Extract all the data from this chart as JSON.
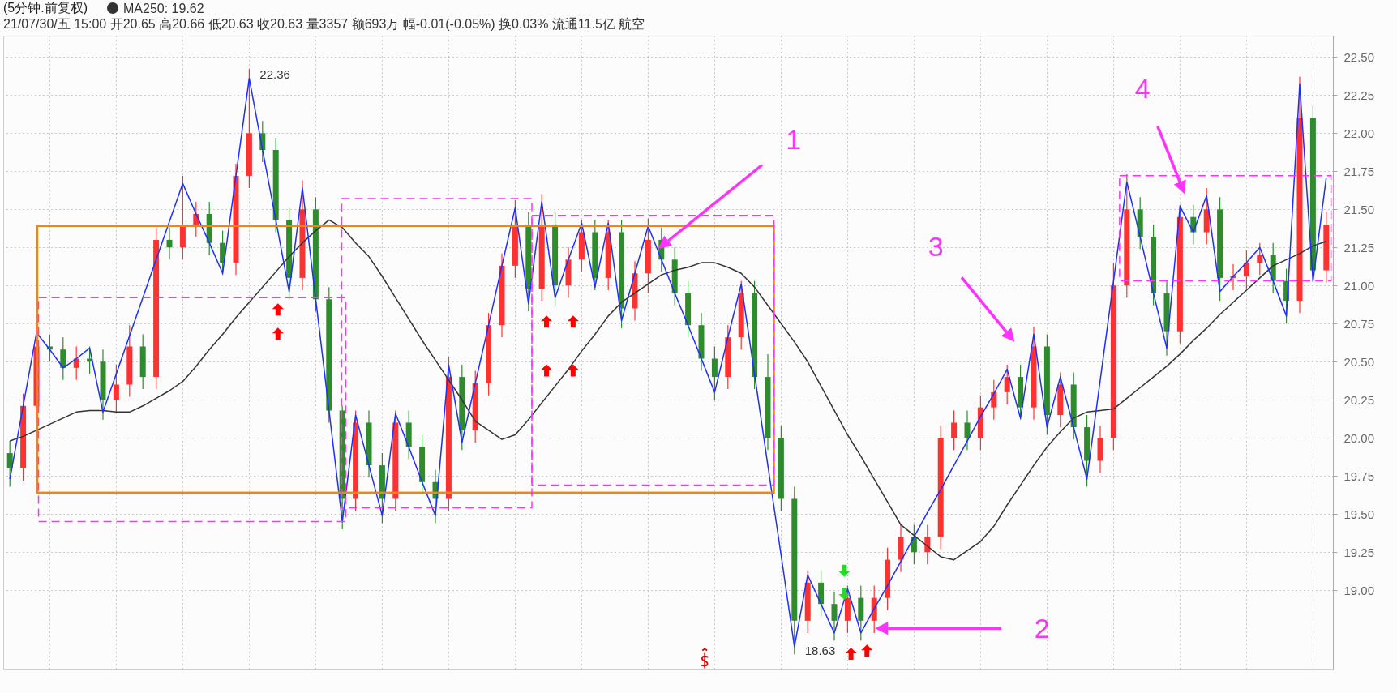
{
  "chart_data": {
    "type": "candlestick",
    "title": "(5分钟.前复权)",
    "subtitle": "21/07/30/五 15:00 开20.65 高20.66 低20.63 收20.63 量3357 额693万 幅-0.01(-0.05%) 换0.03% 流通11.5亿 航空",
    "ylim": [
      18.48,
      22.64
    ],
    "yticks": [
      {
        "value": 19,
        "label": "19.00"
      },
      {
        "value": 19.25,
        "label": "19.25"
      },
      {
        "value": 19.5,
        "label": "19.50"
      },
      {
        "value": 19.75,
        "label": "19.75"
      },
      {
        "value": 20,
        "label": "20.00"
      },
      {
        "value": 20.25,
        "label": "20.25"
      },
      {
        "value": 20.5,
        "label": "20.50"
      },
      {
        "value": 20.75,
        "label": "20.75"
      },
      {
        "value": 21,
        "label": "21.00"
      },
      {
        "value": 21.25,
        "label": "21.25"
      },
      {
        "value": 21.5,
        "label": "21.50"
      },
      {
        "value": 21.75,
        "label": "21.75"
      },
      {
        "value": 22,
        "label": "22.00"
      },
      {
        "value": 22.25,
        "label": "22.25"
      },
      {
        "value": 22.5,
        "label": "22.50"
      }
    ],
    "grid": true,
    "tick_labels": "y",
    "legend": "top left",
    "categories": [
      null,
      null,
      null,
      null,
      null,
      null,
      null,
      null,
      null,
      null,
      null,
      null,
      null,
      null,
      null,
      null,
      null,
      null,
      null,
      null,
      null,
      null,
      null,
      null,
      null,
      null,
      null,
      null,
      null,
      null,
      null,
      null,
      null,
      null,
      null,
      null,
      null,
      null,
      null,
      null,
      null,
      null,
      null,
      null,
      null,
      null,
      null,
      null,
      null,
      null,
      null,
      null,
      null,
      null,
      null,
      null,
      null,
      null,
      null,
      null,
      null,
      null,
      null,
      null,
      null,
      null,
      null,
      null,
      null,
      null,
      null,
      null,
      null,
      null,
      null,
      null,
      null,
      null,
      null,
      null,
      null,
      null,
      null,
      null,
      null,
      null,
      null,
      null,
      null,
      null,
      null,
      null,
      null,
      null,
      null,
      null,
      null,
      null,
      null,
      null
    ],
    "ohlc": [
      [
        19.9,
        19.98,
        19.68,
        19.8
      ],
      [
        19.8,
        20.29,
        19.72,
        20.21
      ],
      [
        20.21,
        20.74,
        20.13,
        20.6
      ],
      [
        20.6,
        20.68,
        20.5,
        20.58
      ],
      [
        20.58,
        20.66,
        20.38,
        20.46
      ],
      [
        20.46,
        20.6,
        20.38,
        20.52
      ],
      [
        20.52,
        20.6,
        20.42,
        20.5
      ],
      [
        20.5,
        20.58,
        20.12,
        20.25
      ],
      [
        20.25,
        20.48,
        20.17,
        20.35
      ],
      [
        20.35,
        20.74,
        20.27,
        20.6
      ],
      [
        20.6,
        20.68,
        20.32,
        20.4
      ],
      [
        20.4,
        21.38,
        20.32,
        21.3
      ],
      [
        21.3,
        21.38,
        21.17,
        21.25
      ],
      [
        21.25,
        21.72,
        21.17,
        21.4
      ],
      [
        21.4,
        21.55,
        21.32,
        21.47
      ],
      [
        21.47,
        21.55,
        21.2,
        21.28
      ],
      [
        21.28,
        21.36,
        21.07,
        21.15
      ],
      [
        21.15,
        21.8,
        21.07,
        21.72
      ],
      [
        21.72,
        22.42,
        21.64,
        22.0
      ],
      [
        22.0,
        22.08,
        21.81,
        21.89
      ],
      [
        21.89,
        21.97,
        21.35,
        21.43
      ],
      [
        21.43,
        21.51,
        20.91,
        21.05
      ],
      [
        21.05,
        21.69,
        20.97,
        21.5
      ],
      [
        21.5,
        21.58,
        20.83,
        20.91
      ],
      [
        20.91,
        20.99,
        20.1,
        20.18
      ],
      [
        20.18,
        20.21,
        19.4,
        19.6
      ],
      [
        19.6,
        20.18,
        19.52,
        20.1
      ],
      [
        20.1,
        20.18,
        19.74,
        19.82
      ],
      [
        19.82,
        19.9,
        19.44,
        19.6
      ],
      [
        19.6,
        20.18,
        19.52,
        20.1
      ],
      [
        20.1,
        20.18,
        19.86,
        19.94
      ],
      [
        19.94,
        20.02,
        19.63,
        19.71
      ],
      [
        19.71,
        19.79,
        19.44,
        19.6
      ],
      [
        19.6,
        20.53,
        19.52,
        20.4
      ],
      [
        20.4,
        20.48,
        19.92,
        20.05
      ],
      [
        20.05,
        20.44,
        19.97,
        20.36
      ],
      [
        20.36,
        20.82,
        20.28,
        20.74
      ],
      [
        20.74,
        21.21,
        20.66,
        21.13
      ],
      [
        21.13,
        21.56,
        21.05,
        21.4
      ],
      [
        21.4,
        21.48,
        20.83,
        20.98
      ],
      [
        20.98,
        21.6,
        20.9,
        21.4
      ],
      [
        21.4,
        21.48,
        20.87,
        21.0
      ],
      [
        21.0,
        21.25,
        20.92,
        21.17
      ],
      [
        21.17,
        21.43,
        21.09,
        21.35
      ],
      [
        21.35,
        21.43,
        20.97,
        21.05
      ],
      [
        21.05,
        21.43,
        20.97,
        21.35
      ],
      [
        21.35,
        21.43,
        20.72,
        20.85
      ],
      [
        20.85,
        21.16,
        20.77,
        21.08
      ],
      [
        21.08,
        21.44,
        20.95,
        21.3
      ],
      [
        21.3,
        21.38,
        21.09,
        21.17
      ],
      [
        21.17,
        21.25,
        20.87,
        20.95
      ],
      [
        20.95,
        21.03,
        20.66,
        20.74
      ],
      [
        20.74,
        20.82,
        20.44,
        20.52
      ],
      [
        20.52,
        20.6,
        20.25,
        20.4
      ],
      [
        20.4,
        20.74,
        20.32,
        20.66
      ],
      [
        20.66,
        21.03,
        20.58,
        20.95
      ],
      [
        20.95,
        21.03,
        20.32,
        20.4
      ],
      [
        20.4,
        20.55,
        19.92,
        20.0
      ],
      [
        20.0,
        20.08,
        19.52,
        19.6
      ],
      [
        19.6,
        19.68,
        18.58,
        18.8
      ],
      [
        18.8,
        19.13,
        18.72,
        19.05
      ],
      [
        19.05,
        19.13,
        18.83,
        18.91
      ],
      [
        18.91,
        18.99,
        18.67,
        18.8
      ],
      [
        18.8,
        19.03,
        18.72,
        18.95
      ],
      [
        18.95,
        19.03,
        18.67,
        18.8
      ],
      [
        18.8,
        19.03,
        18.72,
        18.95
      ],
      [
        18.95,
        19.28,
        18.87,
        19.2
      ],
      [
        19.2,
        19.43,
        19.12,
        19.35
      ],
      [
        19.35,
        19.43,
        19.17,
        19.25
      ],
      [
        19.25,
        19.43,
        19.17,
        19.35
      ],
      [
        19.35,
        20.08,
        19.27,
        20.0
      ],
      [
        20.0,
        20.18,
        19.92,
        20.1
      ],
      [
        20.1,
        20.18,
        19.92,
        20.0
      ],
      [
        20.0,
        20.28,
        19.92,
        20.2
      ],
      [
        20.2,
        20.38,
        20.12,
        20.3
      ],
      [
        20.3,
        20.48,
        20.22,
        20.4
      ],
      [
        20.4,
        20.48,
        20.12,
        20.2
      ],
      [
        20.2,
        20.73,
        20.12,
        20.6
      ],
      [
        20.6,
        20.68,
        20.02,
        20.15
      ],
      [
        20.15,
        20.43,
        20.07,
        20.35
      ],
      [
        20.35,
        20.43,
        19.99,
        20.07
      ],
      [
        20.07,
        20.15,
        19.68,
        19.85
      ],
      [
        19.85,
        20.08,
        19.77,
        20.0
      ],
      [
        20.0,
        21.15,
        19.92,
        21.0
      ],
      [
        21.0,
        21.73,
        20.92,
        21.5
      ],
      [
        21.5,
        21.58,
        21.24,
        21.32
      ],
      [
        21.32,
        21.4,
        20.87,
        20.95
      ],
      [
        20.95,
        21.03,
        20.54,
        20.7
      ],
      [
        20.7,
        21.53,
        20.62,
        21.45
      ],
      [
        21.45,
        21.53,
        21.27,
        21.35
      ],
      [
        21.35,
        21.64,
        21.27,
        21.5
      ],
      [
        21.5,
        21.58,
        20.9,
        21.05
      ],
      [
        21.05,
        21.14,
        20.97,
        21.06
      ],
      [
        21.06,
        21.23,
        20.98,
        21.15
      ],
      [
        21.15,
        21.28,
        21.07,
        21.2
      ],
      [
        21.2,
        21.28,
        20.95,
        21.03
      ],
      [
        21.03,
        21.11,
        20.75,
        20.9
      ],
      [
        20.9,
        22.37,
        20.82,
        22.1
      ],
      [
        22.1,
        22.18,
        21.02,
        21.1
      ],
      [
        21.1,
        21.48,
        21.02,
        21.4
      ]
    ],
    "colors": [
      "#2e8b2e",
      "#ff3232",
      "#ff3232",
      "#2e8b2e",
      "#2e8b2e",
      "#ff3232",
      "#2e8b2e",
      "#2e8b2e",
      "#ff3232",
      "#ff3232",
      "#2e8b2e",
      "#ff3232",
      "#2e8b2e",
      "#ff3232",
      "#ff3232",
      "#2e8b2e",
      "#2e8b2e",
      "#ff3232",
      "#ff3232",
      "#2e8b2e",
      "#2e8b2e",
      "#2e8b2e",
      "#ff3232",
      "#2e8b2e",
      "#2e8b2e",
      "#2e8b2e",
      "#ff3232",
      "#2e8b2e",
      "#2e8b2e",
      "#ff3232",
      "#2e8b2e",
      "#2e8b2e",
      "#2e8b2e",
      "#ff3232",
      "#2e8b2e",
      "#ff3232",
      "#ff3232",
      "#ff3232",
      "#ff3232",
      "#2e8b2e",
      "#ff3232",
      "#2e8b2e",
      "#ff3232",
      "#ff3232",
      "#2e8b2e",
      "#ff3232",
      "#2e8b2e",
      "#ff3232",
      "#ff3232",
      "#2e8b2e",
      "#2e8b2e",
      "#2e8b2e",
      "#2e8b2e",
      "#2e8b2e",
      "#ff3232",
      "#ff3232",
      "#2e8b2e",
      "#2e8b2e",
      "#2e8b2e",
      "#2e8b2e",
      "#ff3232",
      "#2e8b2e",
      "#2e8b2e",
      "#ff3232",
      "#2e8b2e",
      "#ff3232",
      "#ff3232",
      "#ff3232",
      "#2e8b2e",
      "#ff3232",
      "#ff3232",
      "#ff3232",
      "#2e8b2e",
      "#ff3232",
      "#ff3232",
      "#ff3232",
      "#2e8b2e",
      "#ff3232",
      "#2e8b2e",
      "#ff3232",
      "#2e8b2e",
      "#2e8b2e",
      "#ff3232",
      "#ff3232",
      "#ff3232",
      "#2e8b2e",
      "#2e8b2e",
      "#2e8b2e",
      "#ff3232",
      "#2e8b2e",
      "#ff3232",
      "#2e8b2e",
      "#ff3232",
      "#ff3232",
      "#ff3232",
      "#2e8b2e",
      "#2e8b2e",
      "#ff3232",
      "#2e8b2e",
      "#ff3232"
    ],
    "annotations": [
      "22.36",
      "18.63",
      "1",
      "2",
      "3",
      "4"
    ],
    "series": [
      {
        "type": "line",
        "name": "MA250: 19.62",
        "color": "#333333",
        "values": [
          19.98,
          20.01,
          20.05,
          20.09,
          20.13,
          20.17,
          20.18,
          20.18,
          20.17,
          20.17,
          20.21,
          20.26,
          20.31,
          20.37,
          20.47,
          20.58,
          20.68,
          20.79,
          20.89,
          20.99,
          21.09,
          21.19,
          21.28,
          21.36,
          21.43,
          21.38,
          21.28,
          21.19,
          21.06,
          20.92,
          20.78,
          20.64,
          20.51,
          20.38,
          20.25,
          20.11,
          20.05,
          19.99,
          20.02,
          20.12,
          20.23,
          20.34,
          20.45,
          20.57,
          20.68,
          20.8,
          20.89,
          20.95,
          21.01,
          21.07,
          21.1,
          21.12,
          21.15,
          21.15,
          21.12,
          21.08,
          20.99,
          20.87,
          20.75,
          20.63,
          20.5,
          20.34,
          20.18,
          20.02,
          19.88,
          19.73,
          19.58,
          19.43,
          19.36,
          19.29,
          19.22,
          19.2,
          19.26,
          19.32,
          19.42,
          19.56,
          19.69,
          19.82,
          19.94,
          20.04,
          20.13,
          20.17,
          20.18,
          20.19,
          20.26,
          20.33,
          20.4,
          20.47,
          20.55,
          20.64,
          20.72,
          20.81,
          20.89,
          20.97,
          21.05,
          21.13,
          21.17,
          21.21,
          21.26,
          21.29
        ]
      },
      {
        "type": "line",
        "color": "#1f2fff",
        "values": [
          19.73,
          20.21,
          20.69,
          20.58,
          20.46,
          20.52,
          20.59,
          20.17,
          20.42,
          20.67,
          20.92,
          21.17,
          21.42,
          21.67,
          21.47,
          21.28,
          21.08,
          21.72,
          22.36,
          21.89,
          21.43,
          20.96,
          21.64,
          20.91,
          20.18,
          19.45,
          20.15,
          19.82,
          19.49,
          20.16,
          19.94,
          19.71,
          19.49,
          20.48,
          19.97,
          20.36,
          20.74,
          21.13,
          21.51,
          20.88,
          21.55,
          20.92,
          21.17,
          21.41,
          20.99,
          21.41,
          20.77,
          21.08,
          21.39,
          21.17,
          20.95,
          20.74,
          20.52,
          20.3,
          20.66,
          21.01,
          20.42,
          19.82,
          19.23,
          18.63,
          19.1,
          18.91,
          18.72,
          19.01,
          18.72,
          18.88,
          19.03,
          19.19,
          19.35,
          19.51,
          19.66,
          19.82,
          19.98,
          20.14,
          20.29,
          20.45,
          20.13,
          20.68,
          20.07,
          20.4,
          20.07,
          19.73,
          20.38,
          21.03,
          21.68,
          21.32,
          20.95,
          20.59,
          21.52,
          21.35,
          21.59,
          20.96,
          21.06,
          21.15,
          21.25,
          21.03,
          20.8,
          22.32,
          21.03,
          21.71
        ]
      }
    ]
  }
}
